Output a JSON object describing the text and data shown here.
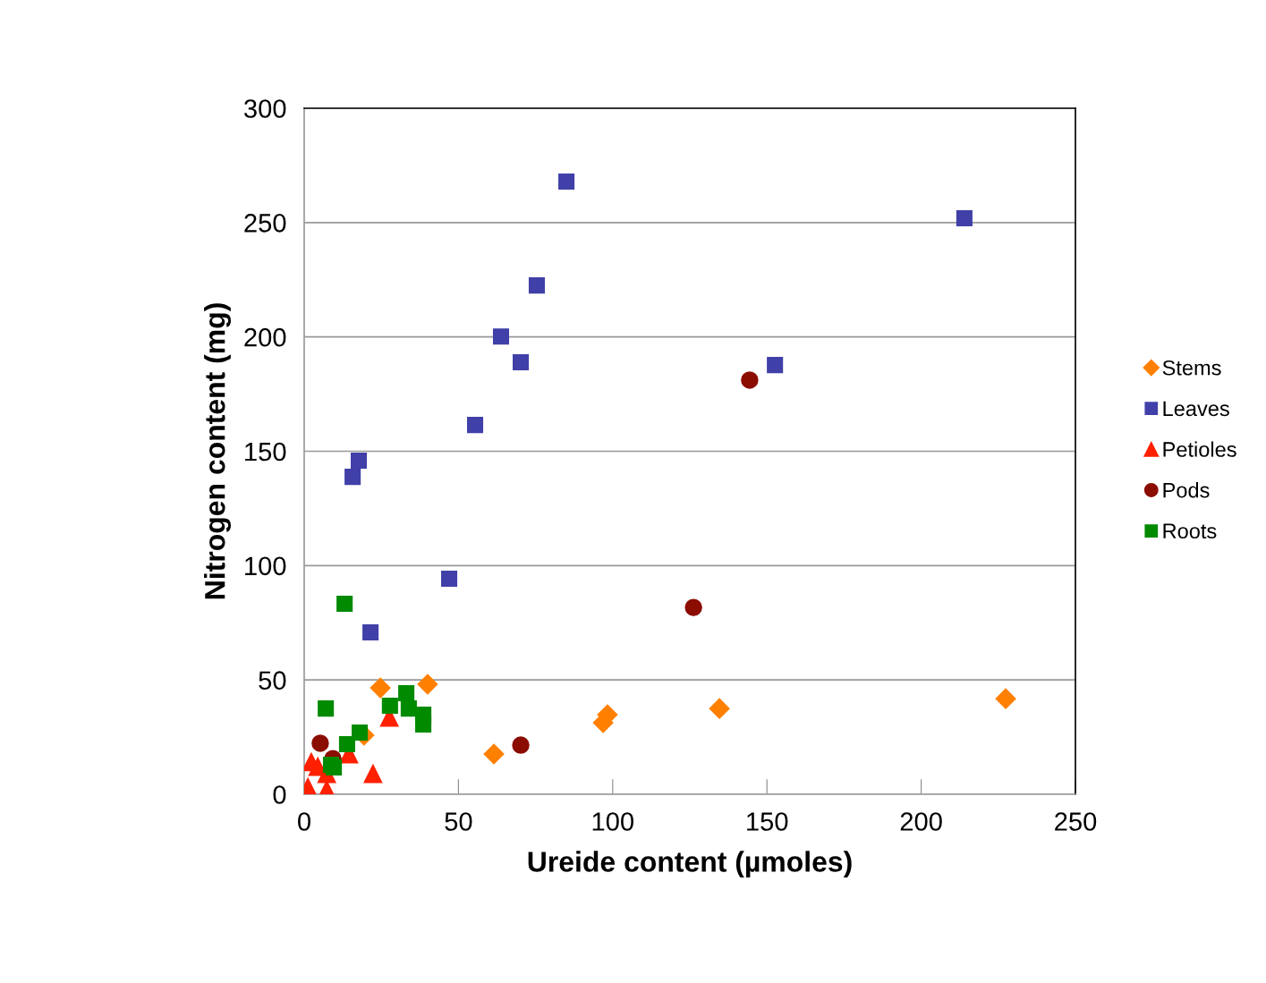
{
  "chart_data": {
    "type": "scatter",
    "xlabel": "Ureide content (µmoles)",
    "ylabel": "Nitrogen content (mg)",
    "xlim": [
      0,
      250
    ],
    "xticks": [
      0,
      50,
      100,
      150,
      200,
      250
    ],
    "ylim": [
      0,
      300
    ],
    "yticks": [
      0,
      50,
      100,
      150,
      200,
      250,
      300
    ],
    "grid": "y",
    "legend": "right",
    "series": [
      {
        "name": "Stems",
        "color": "#ff8000",
        "marker": "diamond",
        "x": [
          24.7,
          40.0,
          61.5,
          96.9,
          98.3,
          134.6,
          227.4,
          19.4
        ],
        "values": [
          46.5,
          48.1,
          17.6,
          31.3,
          34.8,
          37.5,
          41.8,
          25.8
        ]
      },
      {
        "name": "Leaves",
        "color": "#4040a8",
        "marker": "square",
        "x": [
          85.0,
          214.0,
          75.4,
          63.8,
          70.2,
          152.6,
          55.4,
          17.7,
          15.7,
          47.0,
          21.5
        ],
        "values": [
          267.9,
          251.9,
          222.5,
          200.2,
          188.9,
          187.7,
          161.5,
          145.9,
          138.8,
          94.3,
          70.8
        ]
      },
      {
        "name": "Petioles",
        "color": "#ff2000",
        "marker": "triangle",
        "x": [
          2.3,
          1.2,
          7.3,
          22.3,
          7.3,
          27.6,
          14.5,
          4.4
        ],
        "values": [
          14.1,
          3.1,
          2.0,
          9.0,
          9.0,
          33.6,
          17.6,
          12.1
        ]
      },
      {
        "name": "Pods",
        "color": "#8b0d00",
        "marker": "circle",
        "x": [
          5.2,
          144.4,
          126.2,
          70.2,
          9.3
        ],
        "values": [
          22.3,
          181.1,
          81.7,
          21.5,
          15.6
        ]
      },
      {
        "name": "Roots",
        "color": "#008a00",
        "marker": "square",
        "x": [
          13.1,
          7.0,
          18.0,
          13.9,
          8.7,
          9.6,
          27.8,
          33.1,
          33.9,
          38.6,
          38.6
        ],
        "values": [
          83.3,
          37.5,
          27.0,
          21.9,
          12.9,
          11.7,
          38.7,
          44.2,
          37.5,
          34.8,
          30.5
        ]
      }
    ]
  }
}
